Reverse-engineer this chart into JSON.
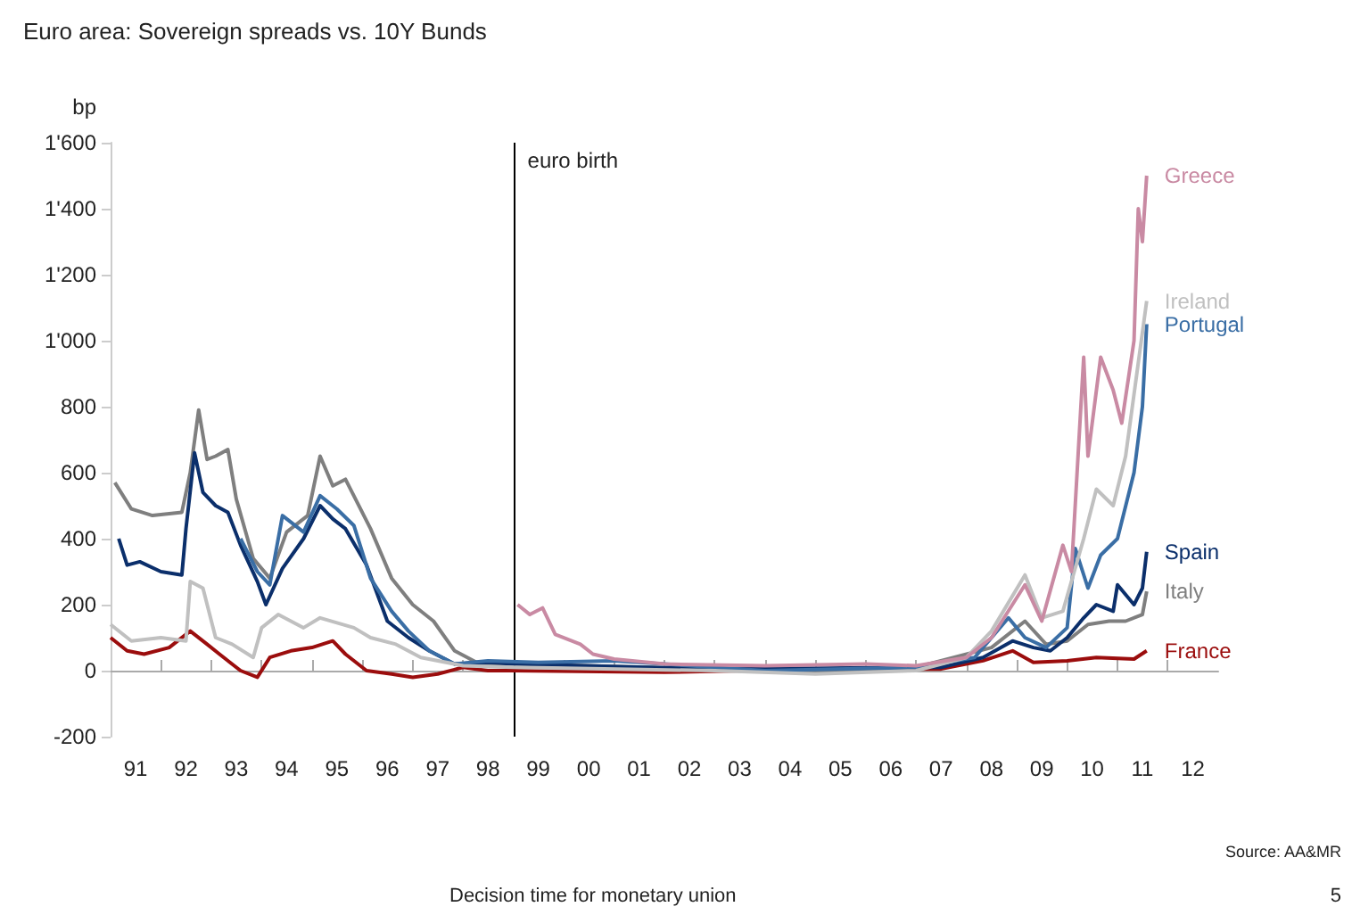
{
  "chart_data": {
    "type": "line",
    "title": "Euro area: Sovereign spreads vs. 10Y Bunds",
    "ylabel": "bp",
    "annotations": [
      "Source: AA&MR",
      "Decision time for monetary union",
      "5"
    ],
    "xlim": [
      "1991",
      "2013"
    ],
    "xticks": [
      {
        "value": "1991-07",
        "label": "91"
      },
      {
        "value": "1992",
        "label": null
      },
      {
        "value": "1992-07",
        "label": "92"
      },
      {
        "value": "1993",
        "label": null
      },
      {
        "value": "1993-07",
        "label": "93"
      },
      {
        "value": "1994",
        "label": null
      },
      {
        "value": "1994-07",
        "label": "94"
      },
      {
        "value": "1995",
        "label": null
      },
      {
        "value": "1995-07",
        "label": "95"
      },
      {
        "value": "1996",
        "label": null
      },
      {
        "value": "1996-07",
        "label": "96"
      },
      {
        "value": "1997",
        "label": null
      },
      {
        "value": "1997-07",
        "label": "97"
      },
      {
        "value": "1998",
        "label": null
      },
      {
        "value": "1998-07",
        "label": "98"
      },
      {
        "value": "1999",
        "label": null
      },
      {
        "value": "1999-07",
        "label": "99"
      },
      {
        "value": "2000",
        "label": null
      },
      {
        "value": "2000-07",
        "label": "00"
      },
      {
        "value": "2001",
        "label": null
      },
      {
        "value": "2001-07",
        "label": "01"
      },
      {
        "value": "2002",
        "label": null
      },
      {
        "value": "2002-07",
        "label": "02"
      },
      {
        "value": "2003",
        "label": null
      },
      {
        "value": "2003-07",
        "label": "03"
      },
      {
        "value": "2004",
        "label": null
      },
      {
        "value": "2004-07",
        "label": "04"
      },
      {
        "value": "2005",
        "label": null
      },
      {
        "value": "2005-07",
        "label": "05"
      },
      {
        "value": "2006",
        "label": null
      },
      {
        "value": "2006-07",
        "label": "06"
      },
      {
        "value": "2007",
        "label": null
      },
      {
        "value": "2007-07",
        "label": "07"
      },
      {
        "value": "2008",
        "label": null
      },
      {
        "value": "2008-07",
        "label": "08"
      },
      {
        "value": "2009",
        "label": null
      },
      {
        "value": "2009-07",
        "label": "09"
      },
      {
        "value": "2010",
        "label": null
      },
      {
        "value": "2010-07",
        "label": "10"
      },
      {
        "value": "2011",
        "label": null
      },
      {
        "value": "2011-07",
        "label": "11"
      },
      {
        "value": "2012",
        "label": null
      },
      {
        "value": "2012-07",
        "label": "12"
      }
    ],
    "ylim": [
      -200,
      1600
    ],
    "yticks": [
      -200,
      0,
      200,
      400,
      600,
      800,
      {
        "value": 1000,
        "label": "1'000"
      },
      {
        "value": 1200,
        "label": "1'200"
      },
      {
        "value": 1400,
        "label": "1'400"
      },
      {
        "value": 1600,
        "label": "1'600"
      }
    ],
    "ref_lines": [
      {
        "axis": "x",
        "value": "1999",
        "label": "euro birth",
        "color": "#000000"
      }
    ],
    "series": [
      {
        "name": "Greece",
        "color": "#c98aa3",
        "x": [
          "1999-02",
          "1999-05",
          "1999-08",
          "1999-11",
          "2000-05",
          "2000-08",
          "2001-01",
          "2002-01",
          "2004-01",
          "2006-01",
          "2007-01",
          "2008-01",
          "2008-07",
          "2009-03",
          "2009-07",
          "2009-12",
          "2010-02",
          "2010-05",
          "2010-06",
          "2010-09",
          "2010-12",
          "2011-02",
          "2011-05",
          "2011-06",
          "2011-07",
          "2011-08"
        ],
        "values": [
          200,
          170,
          190,
          110,
          80,
          50,
          35,
          20,
          15,
          20,
          15,
          40,
          100,
          260,
          150,
          380,
          300,
          950,
          650,
          950,
          850,
          750,
          1000,
          1400,
          1300,
          1500
        ]
      },
      {
        "name": "Ireland",
        "color": "#c0c0c0",
        "x": [
          "1991-01",
          "1991-06",
          "1992-01",
          "1992-07",
          "1992-08",
          "1992-11",
          "1993-02",
          "1993-06",
          "1993-11",
          "1994-01",
          "1994-05",
          "1994-11",
          "1995-03",
          "1995-11",
          "1996-03",
          "1996-09",
          "1997-03",
          "1998-01",
          "1999-01",
          "2003-01",
          "2005-01",
          "2007-01",
          "2008-01",
          "2008-07",
          "2009-03",
          "2009-07",
          "2009-12",
          "2010-05",
          "2010-08",
          "2010-12",
          "2011-03",
          "2011-08"
        ],
        "values": [
          140,
          90,
          100,
          90,
          270,
          250,
          100,
          80,
          40,
          130,
          170,
          130,
          160,
          130,
          100,
          80,
          40,
          15,
          10,
          0,
          -10,
          0,
          40,
          120,
          290,
          160,
          180,
          400,
          550,
          500,
          650,
          1120
        ]
      },
      {
        "name": "Portugal",
        "color": "#3a6ea5",
        "x": [
          "1993-08",
          "1993-12",
          "1994-03",
          "1994-06",
          "1994-11",
          "1995-03",
          "1995-07",
          "1995-11",
          "1996-03",
          "1996-08",
          "1996-12",
          "1997-05",
          "1997-11",
          "1998-07",
          "1999-07",
          "2001-01",
          "2004-01",
          "2007-01",
          "2008-03",
          "2008-11",
          "2009-03",
          "2009-08",
          "2010-01",
          "2010-03",
          "2010-06",
          "2010-09",
          "2011-01",
          "2011-05",
          "2011-07",
          "2011-08"
        ],
        "values": [
          400,
          300,
          260,
          470,
          420,
          530,
          490,
          440,
          280,
          180,
          120,
          60,
          20,
          30,
          25,
          30,
          0,
          10,
          40,
          160,
          100,
          70,
          130,
          370,
          250,
          350,
          400,
          600,
          800,
          1050
        ]
      },
      {
        "name": "Spain",
        "color": "#0b2f6b",
        "x": [
          "1991-03",
          "1991-05",
          "1991-08",
          "1992-01",
          "1992-06",
          "1992-07",
          "1992-09",
          "1992-11",
          "1993-02",
          "1993-05",
          "1993-08",
          "1993-12",
          "1994-02",
          "1994-06",
          "1994-11",
          "1995-03",
          "1995-06",
          "1995-09",
          "1996-02",
          "1996-07",
          "1996-12",
          "1997-05",
          "1997-11",
          "1998-07",
          "1999-01",
          "2003-01",
          "2007-07",
          "2008-05",
          "2008-12",
          "2009-05",
          "2009-09",
          "2010-01",
          "2010-05",
          "2010-08",
          "2010-12",
          "2011-01",
          "2011-05",
          "2011-07",
          "2011-08"
        ],
        "values": [
          400,
          320,
          330,
          300,
          290,
          430,
          660,
          540,
          500,
          480,
          380,
          270,
          200,
          310,
          400,
          500,
          460,
          430,
          320,
          150,
          100,
          60,
          20,
          25,
          20,
          5,
          10,
          40,
          90,
          70,
          60,
          100,
          160,
          200,
          180,
          260,
          200,
          250,
          360
        ]
      },
      {
        "name": "Italy",
        "color": "#7f7f7f",
        "x": [
          "1991-02",
          "1991-06",
          "1991-11",
          "1992-06",
          "1992-08",
          "1992-10",
          "1992-12",
          "1993-02",
          "1993-05",
          "1993-07",
          "1993-11",
          "1994-03",
          "1994-07",
          "1994-12",
          "1995-03",
          "1995-06",
          "1995-09",
          "1996-03",
          "1996-08",
          "1997-01",
          "1997-06",
          "1997-11",
          "1998-05",
          "1999-01",
          "2003-01",
          "2005-01",
          "2007-01",
          "2008-07",
          "2009-03",
          "2009-08",
          "2010-01",
          "2010-06",
          "2010-11",
          "2011-03",
          "2011-07",
          "2011-08"
        ],
        "values": [
          570,
          490,
          470,
          480,
          600,
          790,
          640,
          650,
          670,
          520,
          340,
          280,
          420,
          470,
          650,
          560,
          580,
          430,
          280,
          200,
          150,
          60,
          20,
          20,
          5,
          -5,
          10,
          70,
          150,
          80,
          90,
          140,
          150,
          150,
          170,
          240
        ]
      },
      {
        "name": "France",
        "color": "#9b0d0d",
        "x": [
          "1991-01",
          "1991-05",
          "1991-09",
          "1992-03",
          "1992-08",
          "1992-12",
          "1993-03",
          "1993-08",
          "1993-12",
          "1994-03",
          "1994-08",
          "1995-01",
          "1995-06",
          "1995-09",
          "1996-02",
          "1996-08",
          "1997-01",
          "1997-07",
          "1998-01",
          "1998-07",
          "1999-01",
          "2002-01",
          "2005-01",
          "2007-07",
          "2008-05",
          "2008-12",
          "2009-05",
          "2010-01",
          "2010-08",
          "2011-05",
          "2011-08"
        ],
        "values": [
          100,
          60,
          50,
          70,
          120,
          80,
          50,
          0,
          -20,
          40,
          60,
          70,
          90,
          50,
          0,
          -10,
          -20,
          -10,
          10,
          0,
          0,
          -5,
          5,
          5,
          30,
          60,
          25,
          30,
          40,
          35,
          60
        ]
      }
    ]
  }
}
